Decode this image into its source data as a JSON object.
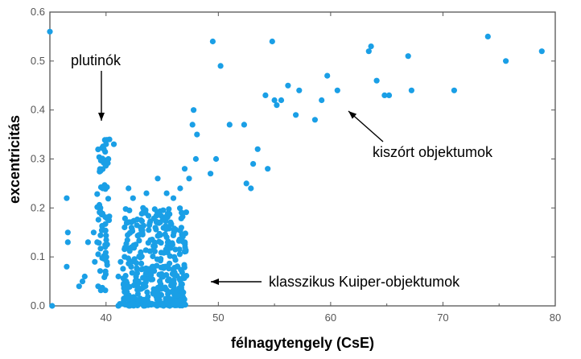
{
  "chart_data": {
    "type": "scatter",
    "title": "",
    "xlabel": "félnagytengely (CsE)",
    "ylabel": "excentricitás",
    "xlim": [
      35,
      80
    ],
    "ylim": [
      0,
      0.6
    ],
    "xticks": [
      "40",
      "50",
      "60",
      "70",
      "80"
    ],
    "yticks": [
      "0.0",
      "0.1",
      "0.2",
      "0.3",
      "0.4",
      "0.5",
      "0.6"
    ],
    "grid": false,
    "legend": "none",
    "annotations": [
      {
        "text": "plutinók",
        "position": "upper-left",
        "arrow": "down"
      },
      {
        "text": "kiszórt objektumok",
        "position": "right",
        "arrow": "up-left"
      },
      {
        "text": "klasszikus Kuiper-objektumok",
        "position": "bottom-right",
        "arrow": "left"
      }
    ],
    "colors": {
      "points": "#1a9fe6",
      "axes": "#555555"
    },
    "points": [
      [
        35.0,
        0.56
      ],
      [
        35.2,
        0.0
      ],
      [
        36.5,
        0.22
      ],
      [
        36.6,
        0.15
      ],
      [
        36.6,
        0.13
      ],
      [
        36.5,
        0.08
      ],
      [
        37.6,
        0.04
      ],
      [
        37.9,
        0.05
      ],
      [
        38.1,
        0.06
      ],
      [
        38.4,
        0.13
      ],
      [
        38.9,
        0.15
      ],
      [
        39.0,
        0.09
      ],
      [
        39.3,
        0.04
      ],
      [
        39.5,
        0.2
      ],
      [
        39.7,
        0.24
      ],
      [
        39.8,
        0.32
      ],
      [
        40.0,
        0.33
      ],
      [
        40.3,
        0.34
      ],
      [
        40.7,
        0.33
      ],
      [
        41.1,
        0.06
      ],
      [
        41.3,
        0.09
      ],
      [
        41.8,
        0.05
      ],
      [
        42.0,
        0.24
      ],
      [
        42.4,
        0.22
      ],
      [
        42.8,
        0.04
      ],
      [
        43.6,
        0.23
      ],
      [
        43.3,
        0.2
      ],
      [
        44.6,
        0.26
      ],
      [
        45.4,
        0.23
      ],
      [
        46.0,
        0.22
      ],
      [
        46.6,
        0.24
      ],
      [
        47.0,
        0.28
      ],
      [
        47.4,
        0.26
      ],
      [
        47.7,
        0.37
      ],
      [
        47.8,
        0.4
      ],
      [
        48.1,
        0.35
      ],
      [
        48.0,
        0.3
      ],
      [
        49.3,
        0.27
      ],
      [
        49.5,
        0.54
      ],
      [
        49.8,
        0.3
      ],
      [
        50.2,
        0.49
      ],
      [
        51.0,
        0.37
      ],
      [
        52.3,
        0.37
      ],
      [
        52.5,
        0.25
      ],
      [
        52.9,
        0.24
      ],
      [
        53.1,
        0.29
      ],
      [
        53.5,
        0.32
      ],
      [
        54.2,
        0.43
      ],
      [
        54.4,
        0.28
      ],
      [
        54.8,
        0.54
      ],
      [
        55.0,
        0.42
      ],
      [
        55.2,
        0.41
      ],
      [
        55.6,
        0.42
      ],
      [
        56.2,
        0.45
      ],
      [
        56.9,
        0.39
      ],
      [
        57.2,
        0.44
      ],
      [
        58.6,
        0.38
      ],
      [
        59.2,
        0.42
      ],
      [
        59.7,
        0.47
      ],
      [
        60.6,
        0.44
      ],
      [
        63.4,
        0.52
      ],
      [
        63.6,
        0.53
      ],
      [
        64.1,
        0.46
      ],
      [
        64.8,
        0.43
      ],
      [
        65.2,
        0.43
      ],
      [
        66.9,
        0.51
      ],
      [
        67.2,
        0.44
      ],
      [
        71.0,
        0.44
      ],
      [
        74.0,
        0.55
      ],
      [
        75.6,
        0.5
      ],
      [
        78.8,
        0.52
      ]
    ],
    "clusters": [
      {
        "name_hint": "plutinos",
        "x_range": [
          39.2,
          40.3
        ],
        "y_range": [
          0.03,
          0.34
        ],
        "count": 70
      },
      {
        "name_hint": "classical",
        "x_range": [
          41.5,
          47.2
        ],
        "y_range": [
          0.0,
          0.2
        ],
        "count": 340
      },
      {
        "name_hint": "classical-zero",
        "x_range": [
          41.0,
          47.0
        ],
        "y_range": [
          0.0,
          0.005
        ],
        "count": 40
      }
    ]
  }
}
